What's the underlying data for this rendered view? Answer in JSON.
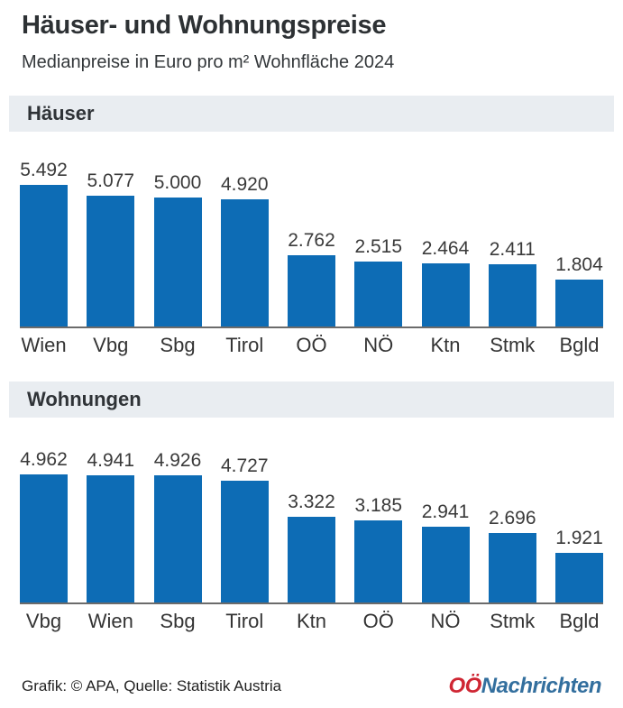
{
  "header": {
    "title": "Häuser- und Wohnungspreise",
    "subtitle": "Medianpreise in Euro pro m² Wohnfläche 2024"
  },
  "chart_data": [
    {
      "type": "bar",
      "title": "Häuser",
      "categories": [
        "Wien",
        "Vbg",
        "Sbg",
        "Tirol",
        "OÖ",
        "NÖ",
        "Ktn",
        "Stmk",
        "Bgld"
      ],
      "values": [
        5492,
        5077,
        5000,
        4920,
        2762,
        2515,
        2464,
        2411,
        1804
      ],
      "value_labels": [
        "5.492",
        "5.077",
        "5.000",
        "4.920",
        "2.762",
        "2.515",
        "2.464",
        "2.411",
        "1.804"
      ],
      "ylabel": "Euro pro m²",
      "ylim": [
        0,
        5500
      ],
      "grid": false,
      "legend": false,
      "bar_color": "#0d6cb5"
    },
    {
      "type": "bar",
      "title": "Wohnungen",
      "categories": [
        "Vbg",
        "Wien",
        "Sbg",
        "Tirol",
        "Ktn",
        "OÖ",
        "NÖ",
        "Stmk",
        "Bgld"
      ],
      "values": [
        4962,
        4941,
        4926,
        4727,
        3322,
        3185,
        2941,
        2696,
        1921
      ],
      "value_labels": [
        "4.962",
        "4.941",
        "4.926",
        "4.727",
        "3.322",
        "3.185",
        "2.941",
        "2.696",
        "1.921"
      ],
      "ylabel": "Euro pro m²",
      "ylim": [
        0,
        5500
      ],
      "grid": false,
      "legend": false,
      "bar_color": "#0d6cb5"
    }
  ],
  "footer": {
    "credit": "Grafik: © APA, Quelle: Statistik Austria",
    "logo_part1": "OÖ",
    "logo_part2": "Nachrichten"
  },
  "colors": {
    "bar": "#0d6cb5",
    "section_band_bg": "#e9edf1",
    "logo_red": "#cf2633",
    "logo_blue": "#336f9e",
    "axis": "#6b6b6b"
  }
}
